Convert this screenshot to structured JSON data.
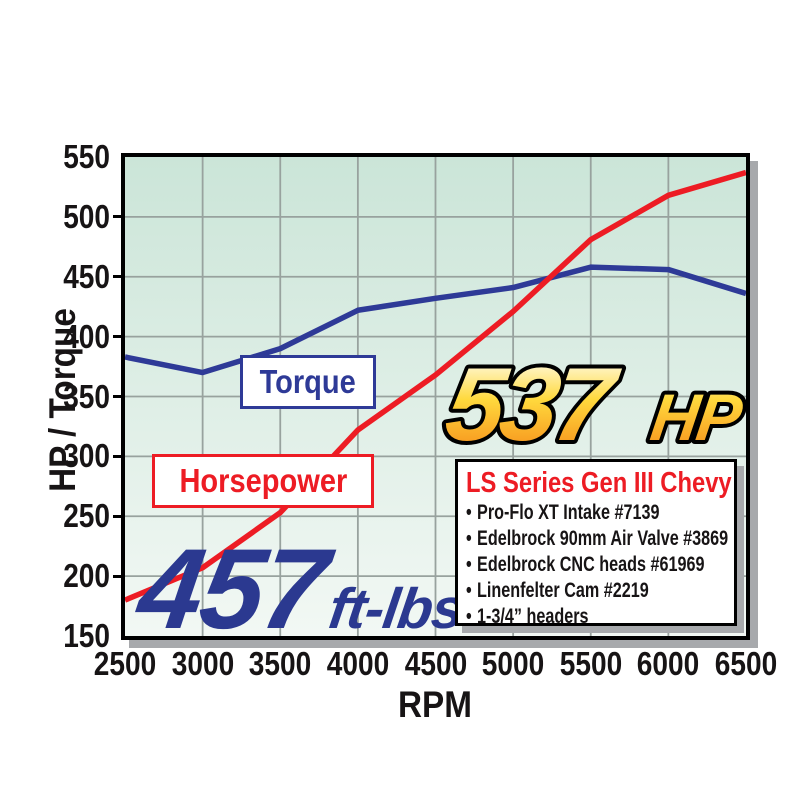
{
  "chart_data": {
    "type": "line",
    "title": "",
    "xlabel": "RPM",
    "ylabel": "HP / Torque",
    "xlim": [
      2500,
      6500
    ],
    "ylim": [
      150,
      550
    ],
    "x_ticks": [
      2500,
      3000,
      3500,
      4000,
      4500,
      5000,
      5500,
      6000,
      6500
    ],
    "y_ticks": [
      150,
      200,
      250,
      300,
      350,
      400,
      450,
      500,
      550
    ],
    "grid": true,
    "x": [
      2500,
      3000,
      3500,
      4000,
      4500,
      5000,
      5500,
      6000,
      6500
    ],
    "series": [
      {
        "name": "Torque",
        "color": "#2e3a97",
        "values": [
          383,
          370,
          390,
          422,
          432,
          441,
          458,
          456,
          436
        ]
      },
      {
        "name": "Horsepower",
        "color": "#ed1c24",
        "values": [
          180,
          207,
          253,
          322,
          368,
          421,
          481,
          518,
          537
        ]
      }
    ],
    "legend_position": "on-curve-boxes"
  },
  "annotations": {
    "torque_label": "Torque",
    "horsepower_label": "Horsepower",
    "hp_callout": {
      "value": "537",
      "unit": "HP"
    },
    "torque_callout": {
      "value": "457",
      "unit": "ft-lbs"
    }
  },
  "spec_box": {
    "title": "LS Series Gen III Chevy",
    "items": [
      "Pro-Flo XT Intake #7139",
      "Edelbrock 90mm Air Valve #3869",
      "Edelbrock CNC heads #61969",
      "Linenfelter Cam #2219",
      "1-3/4” headers"
    ]
  },
  "colors": {
    "torque": "#2e3a97",
    "horsepower": "#ed1c24",
    "grid": "#98a29e",
    "shadow": "#a7a9ac",
    "bg-top": "#cbe5d8",
    "bg-bottom": "#f2f8f4",
    "big-blue": "#2b3990",
    "gold-top": "#fffbe4",
    "gold-mid": "#ffd93d",
    "gold-bottom": "#f7941d"
  }
}
